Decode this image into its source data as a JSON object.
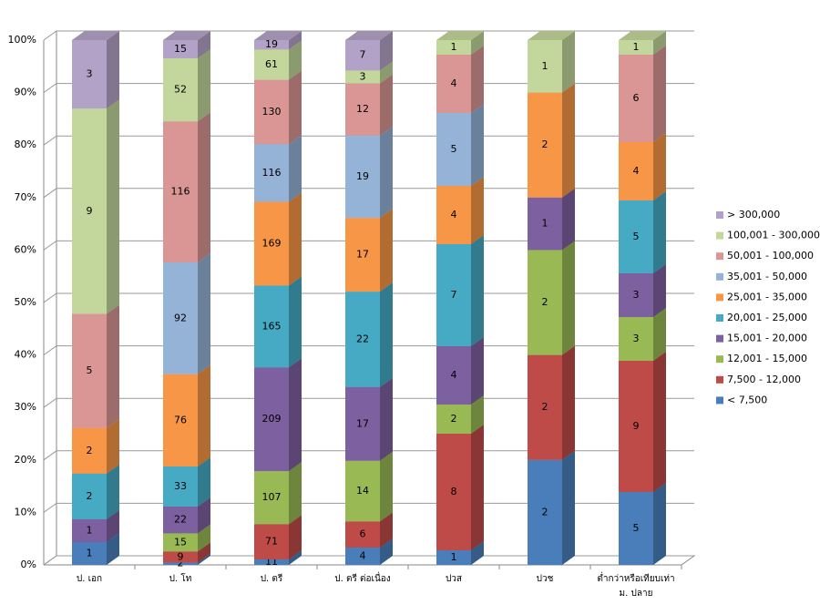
{
  "chart_data": {
    "type": "bar",
    "stacking": "percent",
    "three_d": true,
    "categories": [
      "ป. เอก",
      "ป. โท",
      "ป. ตรี",
      "ป. ตรี ต่อเนื่อง",
      "ปวส",
      "ปวช",
      "ต่ำกว่าหรือเทียบเท่า ม. ปลาย"
    ],
    "series": [
      {
        "name": "< 7,500",
        "color": "#4a7ebb",
        "values": [
          1,
          2,
          11,
          4,
          1,
          2,
          5
        ]
      },
      {
        "name": "7,500 - 12,000",
        "color": "#be4b48",
        "values": [
          null,
          9,
          71,
          6,
          8,
          2,
          9
        ]
      },
      {
        "name": "12,001 - 15,000",
        "color": "#98b954",
        "values": [
          null,
          15,
          107,
          14,
          2,
          2,
          3
        ]
      },
      {
        "name": "15,001 - 20,000",
        "color": "#7d60a0",
        "values": [
          1,
          22,
          209,
          17,
          4,
          1,
          3
        ]
      },
      {
        "name": "20,001 - 25,000",
        "color": "#46aac5",
        "values": [
          2,
          33,
          165,
          22,
          7,
          null,
          5
        ]
      },
      {
        "name": "25,001 - 35,000",
        "color": "#f79646",
        "values": [
          2,
          76,
          169,
          17,
          4,
          2,
          4
        ]
      },
      {
        "name": "35,001 - 50,000",
        "color": "#95b3d7",
        "values": [
          null,
          92,
          116,
          19,
          5,
          null,
          null
        ]
      },
      {
        "name": "50,001 - 100,000",
        "color": "#d99694",
        "values": [
          5,
          116,
          130,
          12,
          4,
          null,
          6
        ]
      },
      {
        "name": "100,001 - 300,000",
        "color": "#c3d69b",
        "values": [
          9,
          52,
          61,
          3,
          1,
          1,
          1
        ]
      },
      {
        "name": "> 300,000",
        "color": "#b3a2c7",
        "values": [
          3,
          15,
          19,
          7,
          null,
          null,
          null
        ]
      }
    ],
    "ylim": [
      0,
      100
    ],
    "yticks": [
      {
        "value": 0,
        "label": "0%"
      },
      {
        "value": 10,
        "label": "10%"
      },
      {
        "value": 20,
        "label": "20%"
      },
      {
        "value": 30,
        "label": "30%"
      },
      {
        "value": 40,
        "label": "40%"
      },
      {
        "value": 50,
        "label": "50%"
      },
      {
        "value": 60,
        "label": "60%"
      },
      {
        "value": 70,
        "label": "70%"
      },
      {
        "value": 80,
        "label": "80%"
      },
      {
        "value": 90,
        "label": "90%"
      },
      {
        "value": 100,
        "label": "100%"
      }
    ],
    "grid": true,
    "legend": "right"
  }
}
